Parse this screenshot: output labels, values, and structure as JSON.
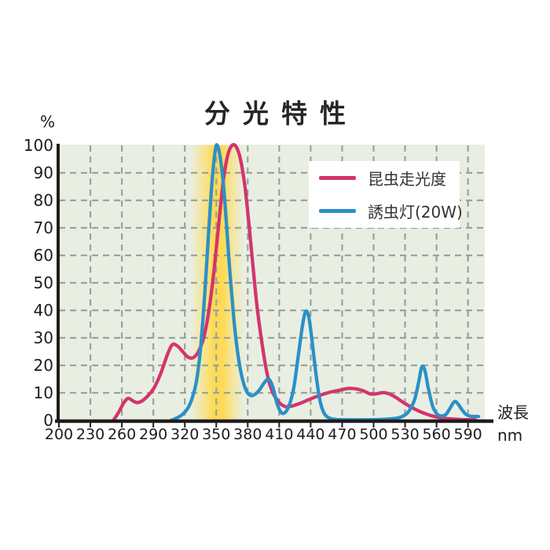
{
  "chart": {
    "title": "分光特性",
    "y_unit_label": "%",
    "x_axis_label_line1": "波長",
    "x_axis_label_line2": "nm",
    "legend": [
      {
        "label": "昆虫走光度",
        "color": "#d5336e"
      },
      {
        "label": "誘虫灯(20W)",
        "color": "#2b90c8"
      }
    ],
    "colors": {
      "plot_bg": "#e8efe2",
      "grid": "#9aa39b",
      "axis": "#1d1d1d",
      "highlight_band": "#ffd94f",
      "title_text": "#262626",
      "label_text": "#1d1d1d"
    }
  },
  "chart_data": {
    "type": "line",
    "title": "分光特性",
    "xlabel": "波長 nm",
    "ylabel": "%",
    "xlim": [
      200,
      606
    ],
    "ylim": [
      0,
      100
    ],
    "x_ticks": [
      200,
      230,
      260,
      290,
      320,
      350,
      380,
      410,
      440,
      470,
      500,
      530,
      560,
      590
    ],
    "y_ticks": [
      0,
      10,
      20,
      30,
      40,
      50,
      60,
      70,
      80,
      90,
      100
    ],
    "grid": true,
    "legend_position": "top-right",
    "highlight_band": {
      "x_from_nm": 326,
      "x_to_nm": 376,
      "color": "#ffd94f"
    },
    "series": [
      {
        "name": "昆虫走光度",
        "color": "#d5336e",
        "points": [
          [
            252,
            0
          ],
          [
            257,
            3
          ],
          [
            262,
            6.5
          ],
          [
            266,
            8
          ],
          [
            270,
            7.2
          ],
          [
            274,
            6.5
          ],
          [
            279,
            7
          ],
          [
            285,
            9
          ],
          [
            291,
            12
          ],
          [
            297,
            17
          ],
          [
            303,
            23.5
          ],
          [
            308,
            27.5
          ],
          [
            313,
            27
          ],
          [
            318,
            25
          ],
          [
            323,
            23
          ],
          [
            328,
            22.8
          ],
          [
            333,
            25
          ],
          [
            338,
            30
          ],
          [
            343,
            40
          ],
          [
            348,
            55
          ],
          [
            353,
            74
          ],
          [
            357,
            88
          ],
          [
            361,
            96.5
          ],
          [
            365,
            100
          ],
          [
            369,
            99.5
          ],
          [
            373,
            95
          ],
          [
            377,
            86
          ],
          [
            381,
            72
          ],
          [
            385,
            56
          ],
          [
            389,
            41
          ],
          [
            394,
            27
          ],
          [
            399,
            16
          ],
          [
            404,
            10
          ],
          [
            410,
            6.5
          ],
          [
            416,
            5
          ],
          [
            422,
            5.2
          ],
          [
            430,
            6.2
          ],
          [
            438,
            7.5
          ],
          [
            448,
            9
          ],
          [
            458,
            10.2
          ],
          [
            468,
            11
          ],
          [
            476,
            11.6
          ],
          [
            484,
            11.4
          ],
          [
            491,
            10.6
          ],
          [
            497,
            9.6
          ],
          [
            503,
            9.7
          ],
          [
            509,
            10.1
          ],
          [
            515,
            9.6
          ],
          [
            521,
            8.4
          ],
          [
            528,
            6.6
          ],
          [
            535,
            5
          ],
          [
            543,
            3.4
          ],
          [
            551,
            2.2
          ],
          [
            558,
            1.4
          ],
          [
            566,
            0.8
          ],
          [
            575,
            0.5
          ],
          [
            585,
            0.3
          ],
          [
            597,
            0.2
          ]
        ]
      },
      {
        "name": "誘虫灯(20W)",
        "color": "#2b90c8",
        "points": [
          [
            307,
            0
          ],
          [
            313,
            1
          ],
          [
            318,
            2.2
          ],
          [
            323,
            4.5
          ],
          [
            327,
            8
          ],
          [
            331,
            14
          ],
          [
            335,
            26
          ],
          [
            339,
            46
          ],
          [
            343,
            70
          ],
          [
            346,
            87
          ],
          [
            349,
            98
          ],
          [
            351,
            100
          ],
          [
            354,
            95
          ],
          [
            357,
            85
          ],
          [
            360,
            70
          ],
          [
            363,
            54
          ],
          [
            367,
            36
          ],
          [
            371,
            23
          ],
          [
            375,
            15
          ],
          [
            379,
            10.5
          ],
          [
            383,
            9
          ],
          [
            387,
            9.5
          ],
          [
            391,
            11
          ],
          [
            396,
            13.8
          ],
          [
            400,
            15
          ],
          [
            404,
            12
          ],
          [
            408,
            6
          ],
          [
            412,
            2.8
          ],
          [
            416,
            3
          ],
          [
            420,
            6
          ],
          [
            424,
            12
          ],
          [
            428,
            23
          ],
          [
            432,
            34
          ],
          [
            435,
            39.5
          ],
          [
            438,
            38
          ],
          [
            441,
            30
          ],
          [
            445,
            17
          ],
          [
            449,
            7
          ],
          [
            453,
            2.5
          ],
          [
            458,
            0.8
          ],
          [
            465,
            0.3
          ],
          [
            475,
            0.2
          ],
          [
            490,
            0.2
          ],
          [
            505,
            0.3
          ],
          [
            518,
            0.6
          ],
          [
            526,
            1.2
          ],
          [
            533,
            3
          ],
          [
            539,
            7.5
          ],
          [
            543,
            14
          ],
          [
            546,
            19.5
          ],
          [
            549,
            18
          ],
          [
            552,
            12
          ],
          [
            556,
            5.5
          ],
          [
            560,
            2.5
          ],
          [
            564,
            1.6
          ],
          [
            569,
            2.2
          ],
          [
            573,
            4.5
          ],
          [
            577,
            6.8
          ],
          [
            580,
            6.2
          ],
          [
            584,
            4
          ],
          [
            588,
            2.2
          ],
          [
            593,
            1.5
          ],
          [
            600,
            1.4
          ]
        ]
      }
    ]
  }
}
